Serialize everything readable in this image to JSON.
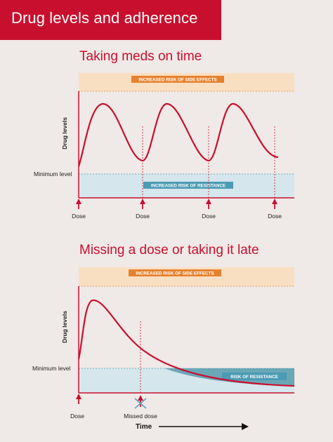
{
  "header": {
    "title": "Drug levels and adherence"
  },
  "panel_on_time": {
    "title": "Taking meds on time",
    "side_effects_label": "INCREASED RISK OF SIDE EFFECTS",
    "resistance_label": "INCREASED RISK OF RESISTANCE",
    "y_axis_label": "Drug levels",
    "min_level_label": "Minimum level",
    "dose_labels": [
      "Dose",
      "Dose",
      "Dose",
      "Dose"
    ]
  },
  "panel_missed": {
    "title": "Missing a dose or taking it late",
    "side_effects_label": "INCREASED RISK OF SIDE EFFECTS",
    "resistance_label": "RISK OF RESISTANCE",
    "y_axis_label": "Drug levels",
    "min_level_label": "Minimum level",
    "dose_label": "Dose",
    "missed_dose_label": "Missed dose",
    "time_label": "Time"
  },
  "colors": {
    "brand_red": "#c8102e",
    "side_effects_zone": "#f9dfc2",
    "side_effects_badge": "#e5822f",
    "resistance_zone": "#d5e6ec",
    "resistance_badge": "#4b9bb4",
    "resistance_zone_dark": "#6aa7b7",
    "background": "#efe9e7"
  }
}
